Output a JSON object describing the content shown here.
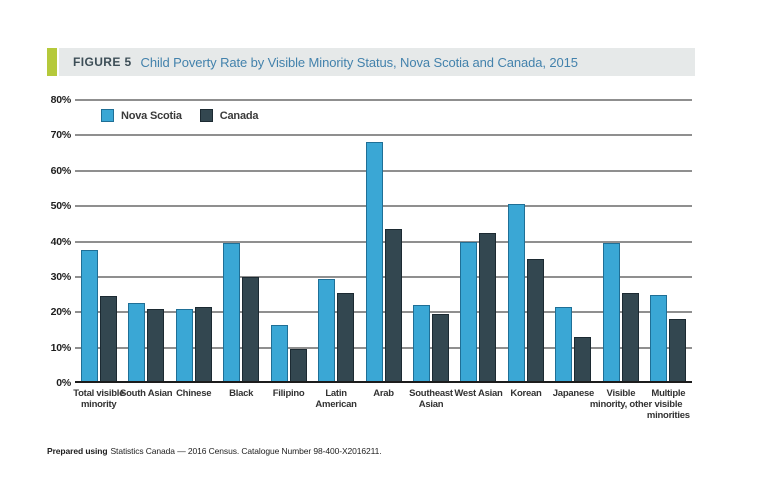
{
  "figure_header": {
    "label": "FIGURE 5",
    "title": "Child Poverty Rate by Visible Minority Status, Nova Scotia and Canada, 2015",
    "accent_color": "#b5c93b",
    "background_color": "#e6e9e9",
    "label_color": "#3d4e57",
    "title_color": "#4382ac"
  },
  "chart_data": {
    "type": "bar",
    "title": "Child Poverty Rate by Visible Minority Status, Nova Scotia and Canada, 2015",
    "categories": [
      "Total visible minority",
      "South Asian",
      "Chinese",
      "Black",
      "Filipino",
      "Latin American",
      "Arab",
      "Southeast Asian",
      "West Asian",
      "Korean",
      "Japanese",
      "Visible minority, other",
      "Multiple visible minorities"
    ],
    "series": [
      {
        "name": "Nova Scotia",
        "color": "#3aa7d5",
        "border": "#1f6f96",
        "values": [
          37.5,
          22.5,
          21,
          39.5,
          16.5,
          29.5,
          68,
          22,
          40,
          50.5,
          21.5,
          39.5,
          25
        ]
      },
      {
        "name": "Canada",
        "color": "#334750",
        "border": "#1c2a32",
        "values": [
          24.5,
          21,
          21.5,
          30,
          9.5,
          25.5,
          43.5,
          19.5,
          42.5,
          35,
          13,
          25.5,
          18
        ]
      }
    ],
    "axis": {
      "min": 0,
      "max": 80,
      "step": 10,
      "suffix": "%"
    },
    "xlabel": "",
    "ylabel": "",
    "grid": true,
    "gridline_color": "#8f8f8f",
    "legend_position": "top-left"
  },
  "footer": {
    "prefix": "Prepared using",
    "text": "Statistics Canada — 2016 Census. Catalogue Number 98-400-X2016211."
  }
}
